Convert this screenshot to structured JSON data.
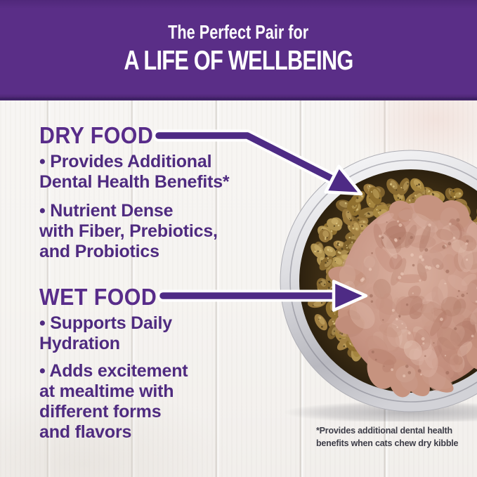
{
  "header": {
    "line1": "The Perfect Pair for",
    "line2": "A LIFE OF WELLBEING"
  },
  "sections": {
    "dry": {
      "heading": "DRY FOOD",
      "bullets": [
        "• Provides Additional\nDental Health Benefits*",
        "• Nutrient Dense\nwith Fiber, Prebiotics,\nand Probiotics"
      ]
    },
    "wet": {
      "heading": "WET FOOD",
      "bullets": [
        "• Supports Daily\nHydration",
        "• Adds excitement\nat mealtime with\ndifferent forms\nand flavors"
      ]
    }
  },
  "footnote": "*Provides additional dental health\nbenefits when cats chew dry kibble",
  "photo": {
    "alt": "Stainless steel bowl filled with dry kibble topped with a mound of wet pate"
  },
  "colors": {
    "header_bg": "#5a2e87",
    "header_rule": "#3f2166",
    "header_text": "#ffffff",
    "heading_purple": "#582c8a",
    "body_purple": "#4f2b80",
    "arrow_purple": "#4e2b85",
    "footnote_gray": "#3c3c47"
  }
}
